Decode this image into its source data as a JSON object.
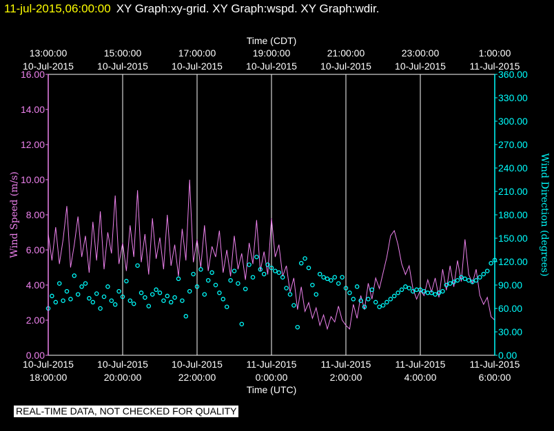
{
  "header": {
    "datetime": "11-jul-2015,06:00:00",
    "graph_titles": "XY Graph:xy-grid.  XY Graph:wspd.  XY Graph:wdir."
  },
  "footer_note": "REAL-TIME DATA, NOT CHECKED FOR QUALITY",
  "colors": {
    "background": "#000000",
    "wind_speed": "#ee82ee",
    "wind_direction": "#00ffff",
    "grid": "#ffffff",
    "header_time": "#ffff00"
  },
  "chart_data": {
    "type": "line",
    "top_axis": {
      "label": "Time (CDT)",
      "ticks": [
        {
          "time": "13:00:00",
          "date": "10-Jul-2015",
          "hour": 0
        },
        {
          "time": "15:00:00",
          "date": "10-Jul-2015",
          "hour": 2
        },
        {
          "time": "17:00:00",
          "date": "10-Jul-2015",
          "hour": 4
        },
        {
          "time": "19:00:00",
          "date": "10-Jul-2015",
          "hour": 6
        },
        {
          "time": "21:00:00",
          "date": "10-Jul-2015",
          "hour": 8
        },
        {
          "time": "23:00:00",
          "date": "10-Jul-2015",
          "hour": 10
        },
        {
          "time": "1:00:00",
          "date": "11-Jul-2015",
          "hour": 12
        }
      ]
    },
    "bottom_axis": {
      "label": "Time (UTC)",
      "ticks": [
        {
          "date": "10-Jul-2015",
          "time": "18:00:00",
          "hour": 0
        },
        {
          "date": "10-Jul-2015",
          "time": "20:00:00",
          "hour": 2
        },
        {
          "date": "10-Jul-2015",
          "time": "22:00:00",
          "hour": 4
        },
        {
          "date": "11-Jul-2015",
          "time": "0:00:00",
          "hour": 6
        },
        {
          "date": "11-Jul-2015",
          "time": "2:00:00",
          "hour": 8
        },
        {
          "date": "11-Jul-2015",
          "time": "4:00:00",
          "hour": 10
        },
        {
          "date": "11-Jul-2015",
          "time": "6:00:00",
          "hour": 12
        }
      ]
    },
    "x_range_hours": [
      0,
      12
    ],
    "left_axis": {
      "label": "Wind Speed (m/s)",
      "range": [
        0,
        16
      ],
      "ticks": [
        "0.00",
        "2.00",
        "4.00",
        "6.00",
        "8.00",
        "10.00",
        "12.00",
        "14.00",
        "16.00"
      ]
    },
    "right_axis": {
      "label": "Wind Direction (degrees)",
      "range": [
        0,
        360
      ],
      "ticks": [
        "0.00",
        "30.00",
        "60.00",
        "90.00",
        "120.00",
        "150.00",
        "180.00",
        "210.00",
        "240.00",
        "270.00",
        "300.00",
        "330.00",
        "360.00"
      ]
    },
    "grid": "vertical lines at each 2-hour tick",
    "series": [
      {
        "key": "wspd",
        "style": "line",
        "color": "#ee82ee",
        "axis": "left",
        "points": [
          [
            0.0,
            6.9
          ],
          [
            0.1,
            5.4
          ],
          [
            0.2,
            7.3
          ],
          [
            0.3,
            5.2
          ],
          [
            0.4,
            6.6
          ],
          [
            0.5,
            8.5
          ],
          [
            0.6,
            5.0
          ],
          [
            0.7,
            6.3
          ],
          [
            0.8,
            7.9
          ],
          [
            0.9,
            5.6
          ],
          [
            1.0,
            6.8
          ],
          [
            1.1,
            4.7
          ],
          [
            1.2,
            7.6
          ],
          [
            1.3,
            5.4
          ],
          [
            1.4,
            8.2
          ],
          [
            1.5,
            4.9
          ],
          [
            1.6,
            7.0
          ],
          [
            1.7,
            5.8
          ],
          [
            1.8,
            9.1
          ],
          [
            1.9,
            5.2
          ],
          [
            2.0,
            6.4
          ],
          [
            2.1,
            4.8
          ],
          [
            2.2,
            7.4
          ],
          [
            2.3,
            5.6
          ],
          [
            2.4,
            9.4
          ],
          [
            2.5,
            5.3
          ],
          [
            2.6,
            6.9
          ],
          [
            2.7,
            4.6
          ],
          [
            2.8,
            7.8
          ],
          [
            2.9,
            5.5
          ],
          [
            3.0,
            6.7
          ],
          [
            3.1,
            4.9
          ],
          [
            3.2,
            8.0
          ],
          [
            3.3,
            5.1
          ],
          [
            3.4,
            6.3
          ],
          [
            3.5,
            4.5
          ],
          [
            3.6,
            7.2
          ],
          [
            3.7,
            5.4
          ],
          [
            3.8,
            10.0
          ],
          [
            3.9,
            5.3
          ],
          [
            4.0,
            6.6
          ],
          [
            4.1,
            5.0
          ],
          [
            4.2,
            7.4
          ],
          [
            4.3,
            4.8
          ],
          [
            4.4,
            6.2
          ],
          [
            4.5,
            5.6
          ],
          [
            4.6,
            7.1
          ],
          [
            4.7,
            4.7
          ],
          [
            4.8,
            6.0
          ],
          [
            4.9,
            4.5
          ],
          [
            5.0,
            6.8
          ],
          [
            5.1,
            4.9
          ],
          [
            5.2,
            5.8
          ],
          [
            5.3,
            4.3
          ],
          [
            5.4,
            6.4
          ],
          [
            5.5,
            5.2
          ],
          [
            5.6,
            7.7
          ],
          [
            5.7,
            4.8
          ],
          [
            5.8,
            5.9
          ],
          [
            5.9,
            4.6
          ],
          [
            6.0,
            7.8
          ],
          [
            6.1,
            5.6
          ],
          [
            6.2,
            6.3
          ],
          [
            6.3,
            4.5
          ],
          [
            6.4,
            5.1
          ],
          [
            6.5,
            3.6
          ],
          [
            6.6,
            4.4
          ],
          [
            6.7,
            2.6
          ],
          [
            6.8,
            3.9
          ],
          [
            6.9,
            2.5
          ],
          [
            7.0,
            3.0
          ],
          [
            7.1,
            2.1
          ],
          [
            7.2,
            2.7
          ],
          [
            7.3,
            1.7
          ],
          [
            7.4,
            2.3
          ],
          [
            7.5,
            1.5
          ],
          [
            7.6,
            2.2
          ],
          [
            7.7,
            1.9
          ],
          [
            7.8,
            2.8
          ],
          [
            7.9,
            2.0
          ],
          [
            8.0,
            1.7
          ],
          [
            8.1,
            1.5
          ],
          [
            8.2,
            2.9
          ],
          [
            8.3,
            2.1
          ],
          [
            8.4,
            3.4
          ],
          [
            8.5,
            2.6
          ],
          [
            8.6,
            4.1
          ],
          [
            8.7,
            3.2
          ],
          [
            8.8,
            4.4
          ],
          [
            8.9,
            3.8
          ],
          [
            9.0,
            4.7
          ],
          [
            9.1,
            5.6
          ],
          [
            9.2,
            6.8
          ],
          [
            9.3,
            7.1
          ],
          [
            9.4,
            6.3
          ],
          [
            9.5,
            5.2
          ],
          [
            9.6,
            4.6
          ],
          [
            9.7,
            5.1
          ],
          [
            9.8,
            3.8
          ],
          [
            9.9,
            3.2
          ],
          [
            10.0,
            3.7
          ],
          [
            10.1,
            3.4
          ],
          [
            10.2,
            4.3
          ],
          [
            10.3,
            3.6
          ],
          [
            10.4,
            4.4
          ],
          [
            10.5,
            3.3
          ],
          [
            10.6,
            4.9
          ],
          [
            10.7,
            3.7
          ],
          [
            10.8,
            5.1
          ],
          [
            10.9,
            3.9
          ],
          [
            11.0,
            5.4
          ],
          [
            11.1,
            4.2
          ],
          [
            11.2,
            6.6
          ],
          [
            11.3,
            4.6
          ],
          [
            11.4,
            4.1
          ],
          [
            11.5,
            4.9
          ],
          [
            11.6,
            3.4
          ],
          [
            11.7,
            2.9
          ],
          [
            11.8,
            3.3
          ],
          [
            11.9,
            2.2
          ],
          [
            12.0,
            2.0
          ]
        ]
      },
      {
        "key": "wdir",
        "style": "markers",
        "color": "#00ffff",
        "axis": "right",
        "points": [
          [
            0.0,
            60
          ],
          [
            0.1,
            76
          ],
          [
            0.2,
            68
          ],
          [
            0.3,
            92
          ],
          [
            0.4,
            70
          ],
          [
            0.5,
            82
          ],
          [
            0.6,
            72
          ],
          [
            0.7,
            102
          ],
          [
            0.8,
            78
          ],
          [
            0.9,
            88
          ],
          [
            1.0,
            92
          ],
          [
            1.1,
            73
          ],
          [
            1.2,
            68
          ],
          [
            1.3,
            79
          ],
          [
            1.4,
            60
          ],
          [
            1.5,
            75
          ],
          [
            1.6,
            88
          ],
          [
            1.7,
            70
          ],
          [
            1.8,
            65
          ],
          [
            1.9,
            82
          ],
          [
            2.0,
            75
          ],
          [
            2.1,
            95
          ],
          [
            2.2,
            70
          ],
          [
            2.3,
            66
          ],
          [
            2.4,
            115
          ],
          [
            2.5,
            80
          ],
          [
            2.6,
            74
          ],
          [
            2.7,
            63
          ],
          [
            2.8,
            78
          ],
          [
            2.9,
            84
          ],
          [
            3.0,
            80
          ],
          [
            3.1,
            70
          ],
          [
            3.2,
            76
          ],
          [
            3.3,
            68
          ],
          [
            3.4,
            74
          ],
          [
            3.5,
            98
          ],
          [
            3.6,
            70
          ],
          [
            3.7,
            50
          ],
          [
            3.8,
            82
          ],
          [
            3.9,
            104
          ],
          [
            4.0,
            88
          ],
          [
            4.1,
            110
          ],
          [
            4.2,
            78
          ],
          [
            4.3,
            96
          ],
          [
            4.4,
            106
          ],
          [
            4.5,
            90
          ],
          [
            4.6,
            80
          ],
          [
            4.7,
            72
          ],
          [
            4.8,
            62
          ],
          [
            4.9,
            96
          ],
          [
            5.0,
            108
          ],
          [
            5.1,
            92
          ],
          [
            5.2,
            40
          ],
          [
            5.3,
            85
          ],
          [
            5.4,
            116
          ],
          [
            5.5,
            100
          ],
          [
            5.6,
            126
          ],
          [
            5.7,
            110
          ],
          [
            5.8,
            104
          ],
          [
            5.9,
            116
          ],
          [
            6.0,
            112
          ],
          [
            6.1,
            108
          ],
          [
            6.2,
            106
          ],
          [
            6.3,
            100
          ],
          [
            6.4,
            86
          ],
          [
            6.5,
            78
          ],
          [
            6.6,
            64
          ],
          [
            6.7,
            36
          ],
          [
            6.8,
            118
          ],
          [
            6.9,
            124
          ],
          [
            7.0,
            112
          ],
          [
            7.1,
            90
          ],
          [
            7.2,
            78
          ],
          [
            7.3,
            104
          ],
          [
            7.4,
            100
          ],
          [
            7.5,
            98
          ],
          [
            7.6,
            96
          ],
          [
            7.7,
            100
          ],
          [
            7.8,
            92
          ],
          [
            7.9,
            100
          ],
          [
            8.0,
            86
          ],
          [
            8.1,
            80
          ],
          [
            8.2,
            72
          ],
          [
            8.3,
            88
          ],
          [
            8.4,
            70
          ],
          [
            8.5,
            62
          ],
          [
            8.6,
            72
          ],
          [
            8.7,
            84
          ],
          [
            8.8,
            68
          ],
          [
            8.9,
            62
          ],
          [
            9.0,
            64
          ],
          [
            9.1,
            68
          ],
          [
            9.2,
            72
          ],
          [
            9.3,
            76
          ],
          [
            9.4,
            80
          ],
          [
            9.5,
            84
          ],
          [
            9.6,
            88
          ],
          [
            9.7,
            86
          ],
          [
            9.8,
            82
          ],
          [
            9.9,
            84
          ],
          [
            10.0,
            84
          ],
          [
            10.1,
            82
          ],
          [
            10.2,
            80
          ],
          [
            10.3,
            80
          ],
          [
            10.4,
            78
          ],
          [
            10.5,
            80
          ],
          [
            10.6,
            82
          ],
          [
            10.7,
            90
          ],
          [
            10.8,
            92
          ],
          [
            10.9,
            94
          ],
          [
            11.0,
            96
          ],
          [
            11.1,
            100
          ],
          [
            11.2,
            98
          ],
          [
            11.3,
            96
          ],
          [
            11.4,
            94
          ],
          [
            11.5,
            96
          ],
          [
            11.6,
            100
          ],
          [
            11.7,
            104
          ],
          [
            11.8,
            108
          ],
          [
            11.9,
            118
          ],
          [
            12.0,
            122
          ]
        ]
      }
    ]
  }
}
